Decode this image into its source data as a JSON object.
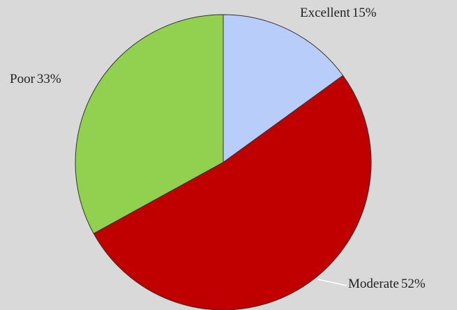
{
  "chart_data": {
    "type": "pie",
    "categories": [
      "Excellent",
      "Moderate",
      "Poor"
    ],
    "values": [
      15,
      52,
      33
    ],
    "value_labels": [
      "15%",
      "52%",
      "33%"
    ],
    "colors": [
      "#b9cdfb",
      "#c00000",
      "#92d050"
    ]
  }
}
